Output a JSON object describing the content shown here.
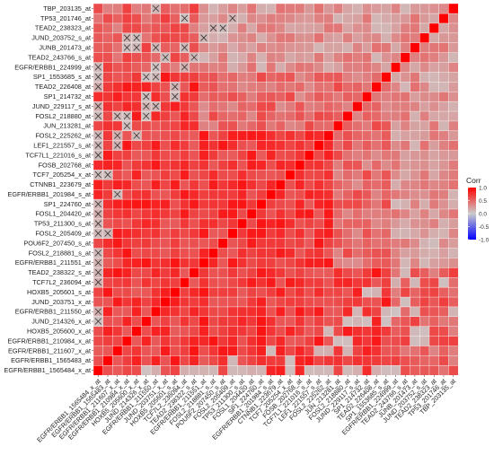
{
  "chart_data": {
    "type": "heatmap",
    "title": "",
    "legend": {
      "title": "Corr",
      "ticks": [
        1.0,
        0.5,
        0.0,
        -0.5,
        -1.0
      ],
      "tick_labels": [
        "1.0",
        "0.5",
        "0.0",
        "-0.5",
        "-1.0"
      ],
      "colors": {
        "high": "#ff0000",
        "mid": "#cccccc",
        "low": "#0000ff"
      },
      "placement": "right"
    },
    "row_labels_top_to_bottom": [
      "TBP_203135_at",
      "TP53_201746_at",
      "TEAD2_238323_at",
      "JUND_203752_s_at",
      "JUNB_201473_at",
      "TEAD2_243766_s_at",
      "EGFR/ERBB1_224999_at",
      "SP1_1553685_s_at",
      "TEAD2_226408_at",
      "SP1_214732_at",
      "JUND_229117_s_at",
      "FOSL2_218880_at",
      "JUN_213281_at",
      "FOSL2_225262_at",
      "LEF1_221557_s_at",
      "TCF7L1_221016_s_at",
      "FOSB_202768_at",
      "TCF7_205254_x_at",
      "CTNNB1_223679_at",
      "EGFR/ERBB1_201984_s_at",
      "SP1_224760_at",
      "FOSL1_204420_at",
      "TP53_211300_s_at",
      "FOSL2_205409_at",
      "POU6F2_207450_s_at",
      "FOSL2_218881_s_at",
      "EGFR/ERBB1_211551_at",
      "TEAD2_238322_s_at",
      "TCF7L2_236094_at",
      "HOXB5_205601_s_at",
      "JUND_203751_x_at",
      "EGFR/ERBB1_211550_at",
      "JUND_214326_x_at",
      "HOXB5_205600_x_at",
      "EGFR/ERBB1_210984_x_at",
      "EGFR/ERBB1_211607_x_at",
      "EGFR/ERBB1_1565483_at",
      "EGFR/ERBB1_1565484_x_at"
    ],
    "x_tick_labels_left_to_right": [
      "EGFR/ERBB1_1565484_x_at",
      "EGFR/ERBB1_1565483_at",
      "EGFR/ERBB1_211607_x_at",
      "EGFR/ERBB1_210984_x_at",
      "HOXB5_205600_x_at",
      "JUND_214326_x_at",
      "EGFR/ERBB1_211550_at",
      "JUND_203751_x_at",
      "HOXB5_205601_s_at",
      "TCF7L2_236094_at",
      "TEAD2_238322_s_at",
      "EGFR/ERBB1_211551_at",
      "FOSL2_218881_s_at",
      "POU6F2_207450_s_at",
      "FOSL2_205409_at",
      "TP53_211300_s_at",
      "FOSL1_204420_at",
      "SP1_224760_at",
      "EGFR/ERBB1_201984_s_at",
      "CTNNB1_223679_at",
      "TCF7_205254_x_at",
      "FOSB_202768_at",
      "TCF7L1_221016_s_at",
      "LEF1_221557_s_at",
      "FOSL2_225262_at",
      "JUN_213281_at",
      "FOSL2_218880_at",
      "JUND_229117_s_at",
      "SP1_214732_at",
      "TEAD2_226408_at",
      "SP1_1553685_s_at",
      "EGFR/ERBB1_224999_at",
      "TEAD2_243766_s_at",
      "JUNB_201473_at",
      "JUND_203752_s_at",
      "TEAD2_238323_at",
      "TP53_201746_at",
      "TBP_203135_at"
    ],
    "diagonal_value": 1.0,
    "blue_markers_note": "negative correlations (light blue/purple cells)",
    "insignificant_markers": [
      [
        0,
        5
      ],
      [
        0,
        6
      ],
      [
        0,
        9
      ],
      [
        0,
        10
      ],
      [
        0,
        11
      ],
      [
        0,
        12
      ],
      [
        0,
        14
      ],
      [
        0,
        15
      ],
      [
        0,
        16
      ],
      [
        0,
        17
      ],
      [
        0,
        20
      ],
      [
        0,
        22
      ],
      [
        0,
        23
      ],
      [
        0,
        24
      ],
      [
        0,
        26
      ],
      [
        0,
        27
      ],
      [
        0,
        29
      ],
      [
        0,
        30
      ],
      [
        0,
        31
      ],
      [
        1,
        14
      ],
      [
        1,
        20
      ],
      [
        2,
        18
      ],
      [
        2,
        23
      ],
      [
        2,
        24
      ],
      [
        2,
        26
      ],
      [
        3,
        25
      ],
      [
        3,
        26
      ],
      [
        3,
        33
      ],
      [
        3,
        34
      ],
      [
        4,
        24
      ],
      [
        4,
        33
      ],
      [
        4,
        34
      ],
      [
        5,
        26
      ],
      [
        5,
        27
      ],
      [
        5,
        28
      ],
      [
        5,
        30
      ],
      [
        6,
        27
      ],
      [
        6,
        30
      ],
      [
        6,
        31
      ],
      [
        6,
        33
      ],
      [
        6,
        37
      ],
      [
        7,
        32
      ],
      [
        8,
        28
      ],
      [
        8,
        29
      ],
      [
        9,
        31
      ],
      [
        9,
        33
      ],
      [
        9,
        36
      ],
      [
        10,
        32
      ],
      [
        11,
        34
      ],
      [
        12,
        35
      ],
      [
        13,
        35
      ],
      [
        14,
        36
      ]
    ]
  }
}
